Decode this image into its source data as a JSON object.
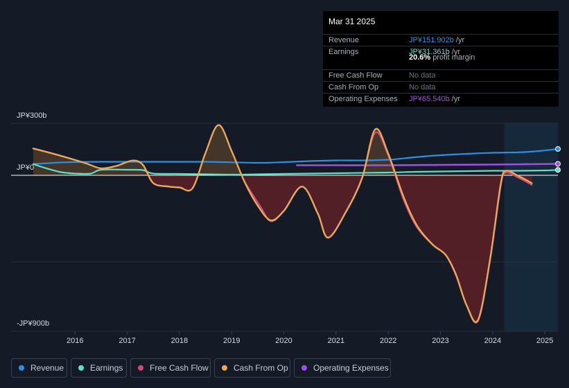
{
  "colors": {
    "background": "#141b26",
    "revenue": "#2d8fe0",
    "earnings": "#5fe0c6",
    "free_cash_flow": "#cc4b79",
    "cash_from_op": "#e9a85a",
    "operating_expenses": "#a14ee6",
    "negative_fill": "#5a2028",
    "positive_fill": "#4b3a2a",
    "forecast_band": "#15293a",
    "zero_line": "#ffffff",
    "grid": "#2a323f"
  },
  "tooltip": {
    "date": "Mar 31 2025",
    "rows": [
      {
        "label": "Revenue",
        "value": "JP¥151.902b",
        "unit": " /yr",
        "color": "#2d8fe0"
      },
      {
        "label": "Earnings",
        "value": "JP¥31.361b",
        "unit": " /yr",
        "color": "#5fe0c6"
      },
      {
        "label": "Free Cash Flow",
        "value": "No data",
        "unit": "",
        "color": "nodata"
      },
      {
        "label": "Cash From Op",
        "value": "No data",
        "unit": "",
        "color": "nodata"
      },
      {
        "label": "Operating Expenses",
        "value": "JP¥65.540b",
        "unit": " /yr",
        "color": "#a14ee6"
      }
    ],
    "margin_value": "20.6%",
    "margin_label": " profit margin"
  },
  "legend": [
    {
      "label": "Revenue",
      "color": "#2d8fe0"
    },
    {
      "label": "Earnings",
      "color": "#5fe0c6"
    },
    {
      "label": "Free Cash Flow",
      "color": "#cc4b79"
    },
    {
      "label": "Cash From Op",
      "color": "#e9a85a"
    },
    {
      "label": "Operating Expenses",
      "color": "#a14ee6"
    }
  ],
  "chart_data": {
    "type": "line",
    "title": "",
    "xlabel": "",
    "ylabel": "",
    "unit": "JP¥b",
    "y_axis_labels": [
      "JP¥300b",
      "JP¥0",
      "-JP¥900b"
    ],
    "ylim": [
      -900,
      300
    ],
    "xlim": [
      2015.2,
      2025.25
    ],
    "x_ticks": [
      2016,
      2017,
      2018,
      2019,
      2020,
      2021,
      2022,
      2023,
      2024,
      2025
    ],
    "x_tick_labels": [
      "2016",
      "2017",
      "2018",
      "2019",
      "2020",
      "2021",
      "2022",
      "2023",
      "2024",
      "2025"
    ],
    "forecast_start": 2024.22,
    "series": [
      {
        "name": "Revenue",
        "key": "revenue",
        "x": [
          2015.2,
          2015.8,
          2016.5,
          2017.5,
          2018.5,
          2019.5,
          2020.0,
          2020.5,
          2021.0,
          2021.5,
          2022.0,
          2022.5,
          2023.0,
          2023.5,
          2024.0,
          2024.5,
          2024.8,
          2025.25
        ],
        "values": [
          65,
          75,
          78,
          78,
          78,
          72,
          76,
          82,
          86,
          86,
          90,
          104,
          116,
          124,
          130,
          133,
          138,
          152
        ]
      },
      {
        "name": "Earnings",
        "key": "earnings",
        "x": [
          2015.2,
          2015.4,
          2015.7,
          2016.0,
          2016.3,
          2016.5,
          2017.0,
          2017.3,
          2017.5,
          2018.0,
          2018.5,
          2019.0,
          2019.5,
          2020.0,
          2020.5,
          2021.0,
          2021.5,
          2022.0,
          2022.5,
          2023.0,
          2023.5,
          2024.0,
          2024.5,
          2025.0,
          2025.25
        ],
        "values": [
          65,
          45,
          20,
          10,
          10,
          32,
          32,
          30,
          10,
          8,
          6,
          4,
          6,
          8,
          10,
          12,
          14,
          16,
          20,
          22,
          24,
          26,
          26,
          28,
          31
        ]
      },
      {
        "name": "Free Cash Flow",
        "key": "free_cash_flow",
        "x": [
          2019.25,
          2019.55,
          2019.75,
          2020.0,
          2020.35,
          2020.65,
          2020.85,
          2021.2,
          2021.5,
          2021.75,
          2022.0,
          2022.3,
          2022.55,
          2022.85,
          2023.1,
          2023.3,
          2023.5,
          2023.72,
          2023.95,
          2024.15,
          2024.25,
          2024.5,
          2024.75
        ],
        "values": [
          -40,
          -180,
          -265,
          -205,
          -65,
          -220,
          -360,
          -205,
          -15,
          245,
          115,
          -145,
          -300,
          -400,
          -460,
          -580,
          -750,
          -840,
          -490,
          -70,
          15,
          -15,
          -55
        ]
      },
      {
        "name": "Cash From Op",
        "key": "cash_from_op",
        "x": [
          2015.2,
          2015.7,
          2016.2,
          2016.5,
          2016.8,
          2017.1,
          2017.3,
          2017.5,
          2017.8,
          2018.0,
          2018.25,
          2018.5,
          2018.75,
          2019.0,
          2019.25,
          2019.5,
          2019.75,
          2020.0,
          2020.35,
          2020.65,
          2020.85,
          2021.2,
          2021.5,
          2021.75,
          2022.0,
          2022.3,
          2022.55,
          2022.85,
          2023.1,
          2023.3,
          2023.5,
          2023.72,
          2023.95,
          2024.15,
          2024.25,
          2024.5,
          2024.75
        ],
        "values": [
          155,
          115,
          70,
          40,
          55,
          85,
          60,
          -45,
          -65,
          -70,
          -75,
          130,
          290,
          140,
          -40,
          -175,
          -260,
          -205,
          -65,
          -220,
          -360,
          -205,
          -15,
          265,
          125,
          -130,
          -290,
          -400,
          -460,
          -575,
          -750,
          -835,
          -485,
          -60,
          25,
          -5,
          -45
        ]
      },
      {
        "name": "Operating Expenses",
        "key": "operating_expenses",
        "x": [
          2020.25,
          2021.0,
          2022.0,
          2023.0,
          2024.0,
          2025.25
        ],
        "values": [
          58,
          58,
          58,
          60,
          62,
          66
        ]
      }
    ]
  }
}
